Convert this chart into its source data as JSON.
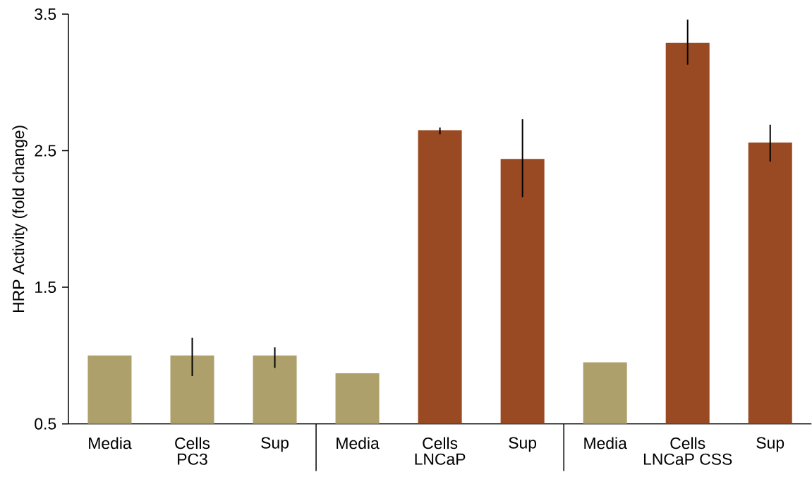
{
  "chart_data": {
    "type": "bar",
    "ylabel": "HRP Activity (fold change)",
    "categories": [
      "Media",
      "Cells",
      "Sup",
      "Media",
      "Cells",
      "Sup",
      "Media",
      "Cells",
      "Sup"
    ],
    "values": [
      1.0,
      1.0,
      1.0,
      0.87,
      2.65,
      2.44,
      0.95,
      3.29,
      2.56
    ],
    "errors": [
      null,
      [
        0.85,
        1.13
      ],
      [
        0.91,
        1.06
      ],
      null,
      [
        2.62,
        2.67
      ],
      [
        2.16,
        2.73
      ],
      null,
      [
        3.13,
        3.46
      ],
      [
        2.42,
        2.69
      ]
    ],
    "colors": [
      "#ada06a",
      "#ada06a",
      "#ada06a",
      "#ada06a",
      "#9a4a22",
      "#9a4a22",
      "#ada06a",
      "#9a4a22",
      "#9a4a22"
    ],
    "annotations": [
      "PC3",
      "LNCaP",
      "LNCaP CSS"
    ],
    "ylim": [
      0.5,
      3.5
    ],
    "yticks": [
      0.5,
      1.5,
      2.5,
      3.5
    ]
  }
}
